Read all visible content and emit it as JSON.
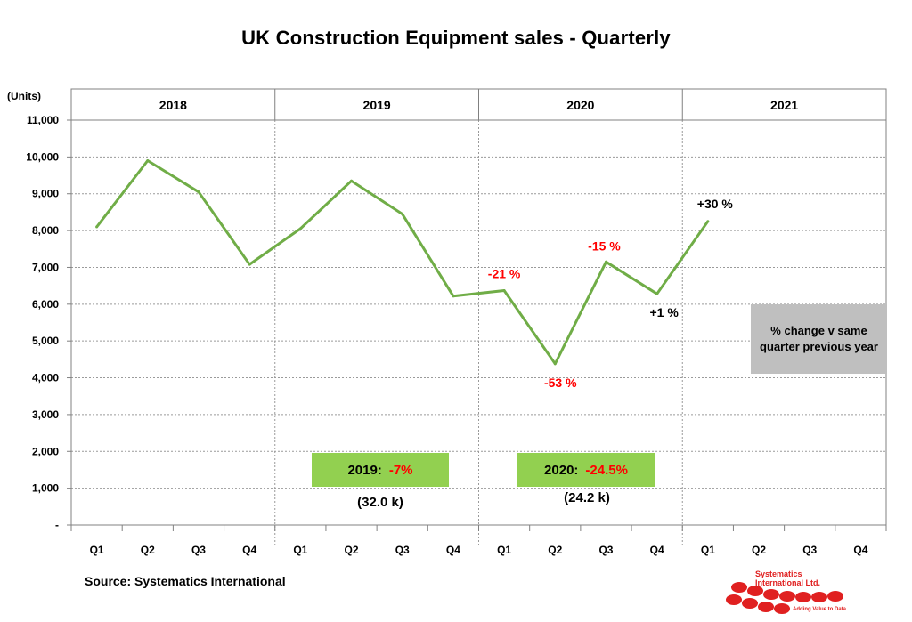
{
  "chart_data": {
    "type": "line",
    "title": "UK Construction  Equipment sales - Quarterly",
    "ylabel": "(Units)",
    "ylim": [
      0,
      11000
    ],
    "yticks": [
      0,
      1000,
      2000,
      3000,
      4000,
      5000,
      6000,
      7000,
      8000,
      9000,
      10000,
      11000
    ],
    "ytick_labels": [
      "-",
      "1,000",
      "2,000",
      "3,000",
      "4,000",
      "5,000",
      "6,000",
      "7,000",
      "8,000",
      "9,000",
      "10,000",
      "11,000"
    ],
    "years": [
      "2018",
      "2019",
      "2020",
      "2021"
    ],
    "categories": [
      "Q1",
      "Q2",
      "Q3",
      "Q4",
      "Q1",
      "Q2",
      "Q3",
      "Q4",
      "Q1",
      "Q2",
      "Q3",
      "Q4",
      "Q1",
      "Q2",
      "Q3",
      "Q4"
    ],
    "series": [
      {
        "values": [
          8100,
          9900,
          9050,
          7080,
          8050,
          9350,
          8450,
          6220,
          6370,
          4380,
          7150,
          6280,
          8250,
          null,
          null,
          null
        ],
        "color": "#70ad47"
      }
    ],
    "annotations": [
      {
        "index": 8,
        "text": "-21 %",
        "color": "#ff0000"
      },
      {
        "index": 9,
        "text": "-53 %",
        "color": "#ff0000"
      },
      {
        "index": 10,
        "text": "-15 %",
        "color": "#ff0000"
      },
      {
        "index": 11,
        "text": "+1 %",
        "color": "#000000"
      },
      {
        "index": 12,
        "text": "+30 %",
        "color": "#000000"
      }
    ],
    "grid": true
  },
  "summaries": [
    {
      "label": "2019:",
      "change": "-7%",
      "units": "(32.0 k)"
    },
    {
      "label": "2020:",
      "change": "-24.5%",
      "units": "(24.2 k)"
    }
  ],
  "legend_note": "% change v same quarter previous year",
  "source": "Source: Systematics International",
  "logo": {
    "name_line1": "Systematics",
    "name_line2": "International Ltd.",
    "tagline": "Adding Value to Data"
  },
  "colors": {
    "line": "#70ad47",
    "summary_box": "#92d050",
    "note_box": "#bfbfbf",
    "negative": "#ff0000"
  }
}
